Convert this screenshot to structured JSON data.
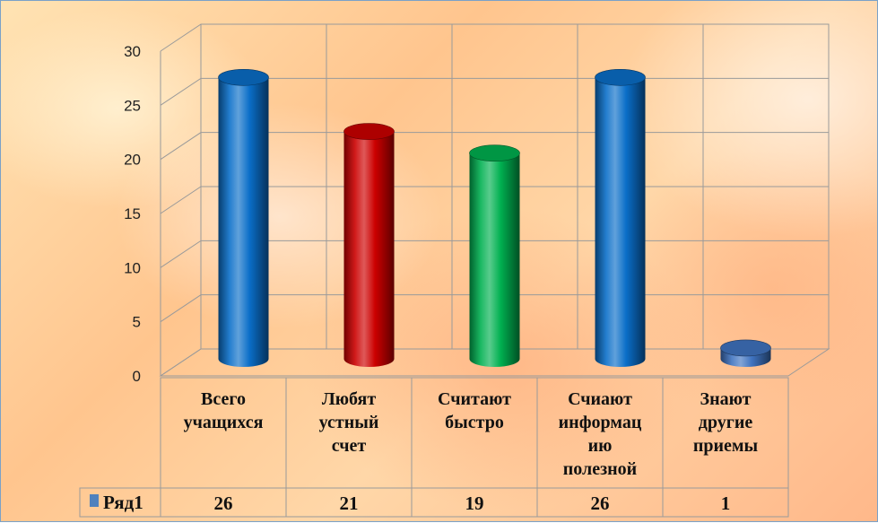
{
  "chart_data": {
    "type": "bar",
    "style": "3d-cylinder",
    "categories": [
      [
        "Всего",
        "учащихся"
      ],
      [
        "Любят",
        "устный",
        "счет"
      ],
      [
        "Считают",
        "быстро"
      ],
      [
        "Счиают",
        "информац",
        "ию",
        "полезной"
      ],
      [
        "Знают",
        "другие",
        "приемы"
      ]
    ],
    "series": [
      {
        "name": "Ряд1",
        "values": [
          26,
          21,
          19,
          26,
          1
        ],
        "value_labels": [
          "26",
          "21",
          "19",
          "26",
          "1"
        ],
        "legend_color": "#4f81bd"
      }
    ],
    "bar_colors": [
      "#0a6ec8",
      "#cc0000",
      "#00b050",
      "#0a6ec8",
      "#3f73c0"
    ],
    "yticks": [
      "0",
      "5",
      "10",
      "15",
      "20",
      "25",
      "30"
    ],
    "ylim": [
      0,
      30
    ],
    "grid": true,
    "legend": "data-table",
    "title": "",
    "xlabel": "",
    "ylabel": ""
  }
}
